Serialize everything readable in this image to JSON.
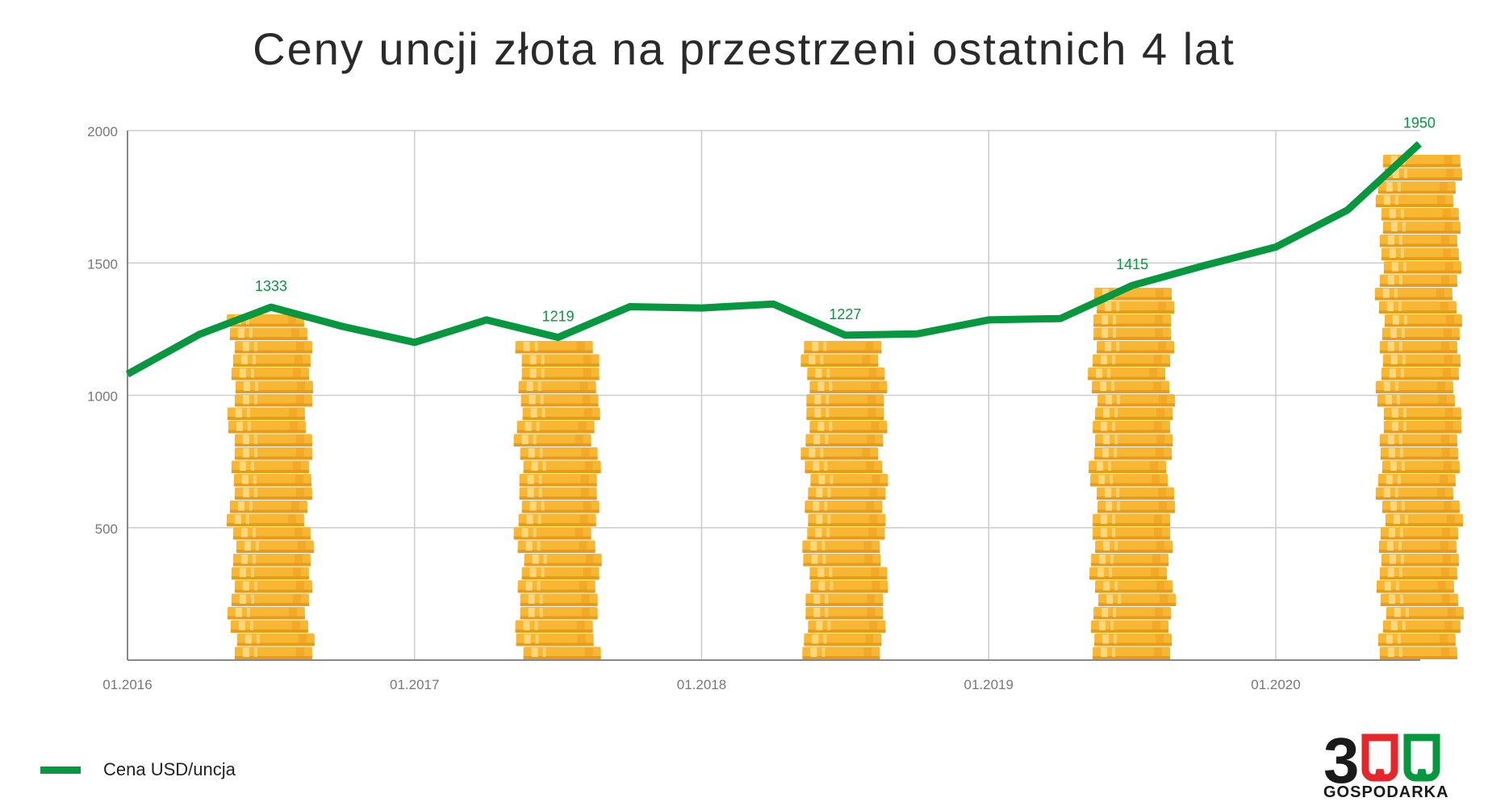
{
  "title": "Ceny uncji złota na przestrzeni ostatnich 4 lat",
  "legend": {
    "label": "Cena USD/uncja"
  },
  "logo": {
    "number": "300",
    "word": "GOSPODARKA"
  },
  "colors": {
    "line": "#07973f",
    "label": "#07973f",
    "grid": "#cccccc",
    "axis": "#888888",
    "coin_main": "#f7b733",
    "coin_light": "#fdd77a",
    "coin_dark": "#e89a18",
    "logo_red": "#e5262b",
    "logo_green": "#07973f"
  },
  "chart_data": {
    "type": "line",
    "title": "Ceny uncji złota na przestrzeni ostatnich 4 lat",
    "xlabel": "",
    "ylabel": "",
    "ylim": [
      0,
      2000
    ],
    "yticks": [
      500,
      1000,
      1500,
      2000
    ],
    "xticks": [
      "01.2016",
      "01.2017",
      "01.2018",
      "01.2019",
      "01.2020"
    ],
    "grid": true,
    "legend_position": "bottom-left",
    "series": [
      {
        "name": "Cena USD/uncja",
        "x": [
          "01.2016",
          "04.2016",
          "07.2016",
          "10.2016",
          "01.2017",
          "04.2017",
          "07.2017",
          "10.2017",
          "01.2018",
          "04.2018",
          "07.2018",
          "10.2018",
          "01.2019",
          "04.2019",
          "07.2019",
          "10.2019",
          "01.2020",
          "04.2020",
          "07.2020"
        ],
        "values": [
          1080,
          1230,
          1333,
          1260,
          1200,
          1285,
          1219,
          1335,
          1330,
          1345,
          1227,
          1232,
          1285,
          1290,
          1415,
          1490,
          1560,
          1700,
          1950
        ]
      }
    ],
    "annotations": [
      {
        "x": "07.2016",
        "value": 1333,
        "text": "1333"
      },
      {
        "x": "07.2017",
        "value": 1219,
        "text": "1219"
      },
      {
        "x": "07.2018",
        "value": 1227,
        "text": "1227"
      },
      {
        "x": "07.2019",
        "value": 1415,
        "text": "1415"
      },
      {
        "x": "07.2020",
        "value": 1950,
        "text": "1950"
      }
    ],
    "coin_stacks": [
      {
        "x": "07.2016",
        "value": 1333
      },
      {
        "x": "07.2017",
        "value": 1219
      },
      {
        "x": "07.2018",
        "value": 1227
      },
      {
        "x": "07.2019",
        "value": 1415
      },
      {
        "x": "07.2020",
        "value": 1950
      }
    ]
  }
}
